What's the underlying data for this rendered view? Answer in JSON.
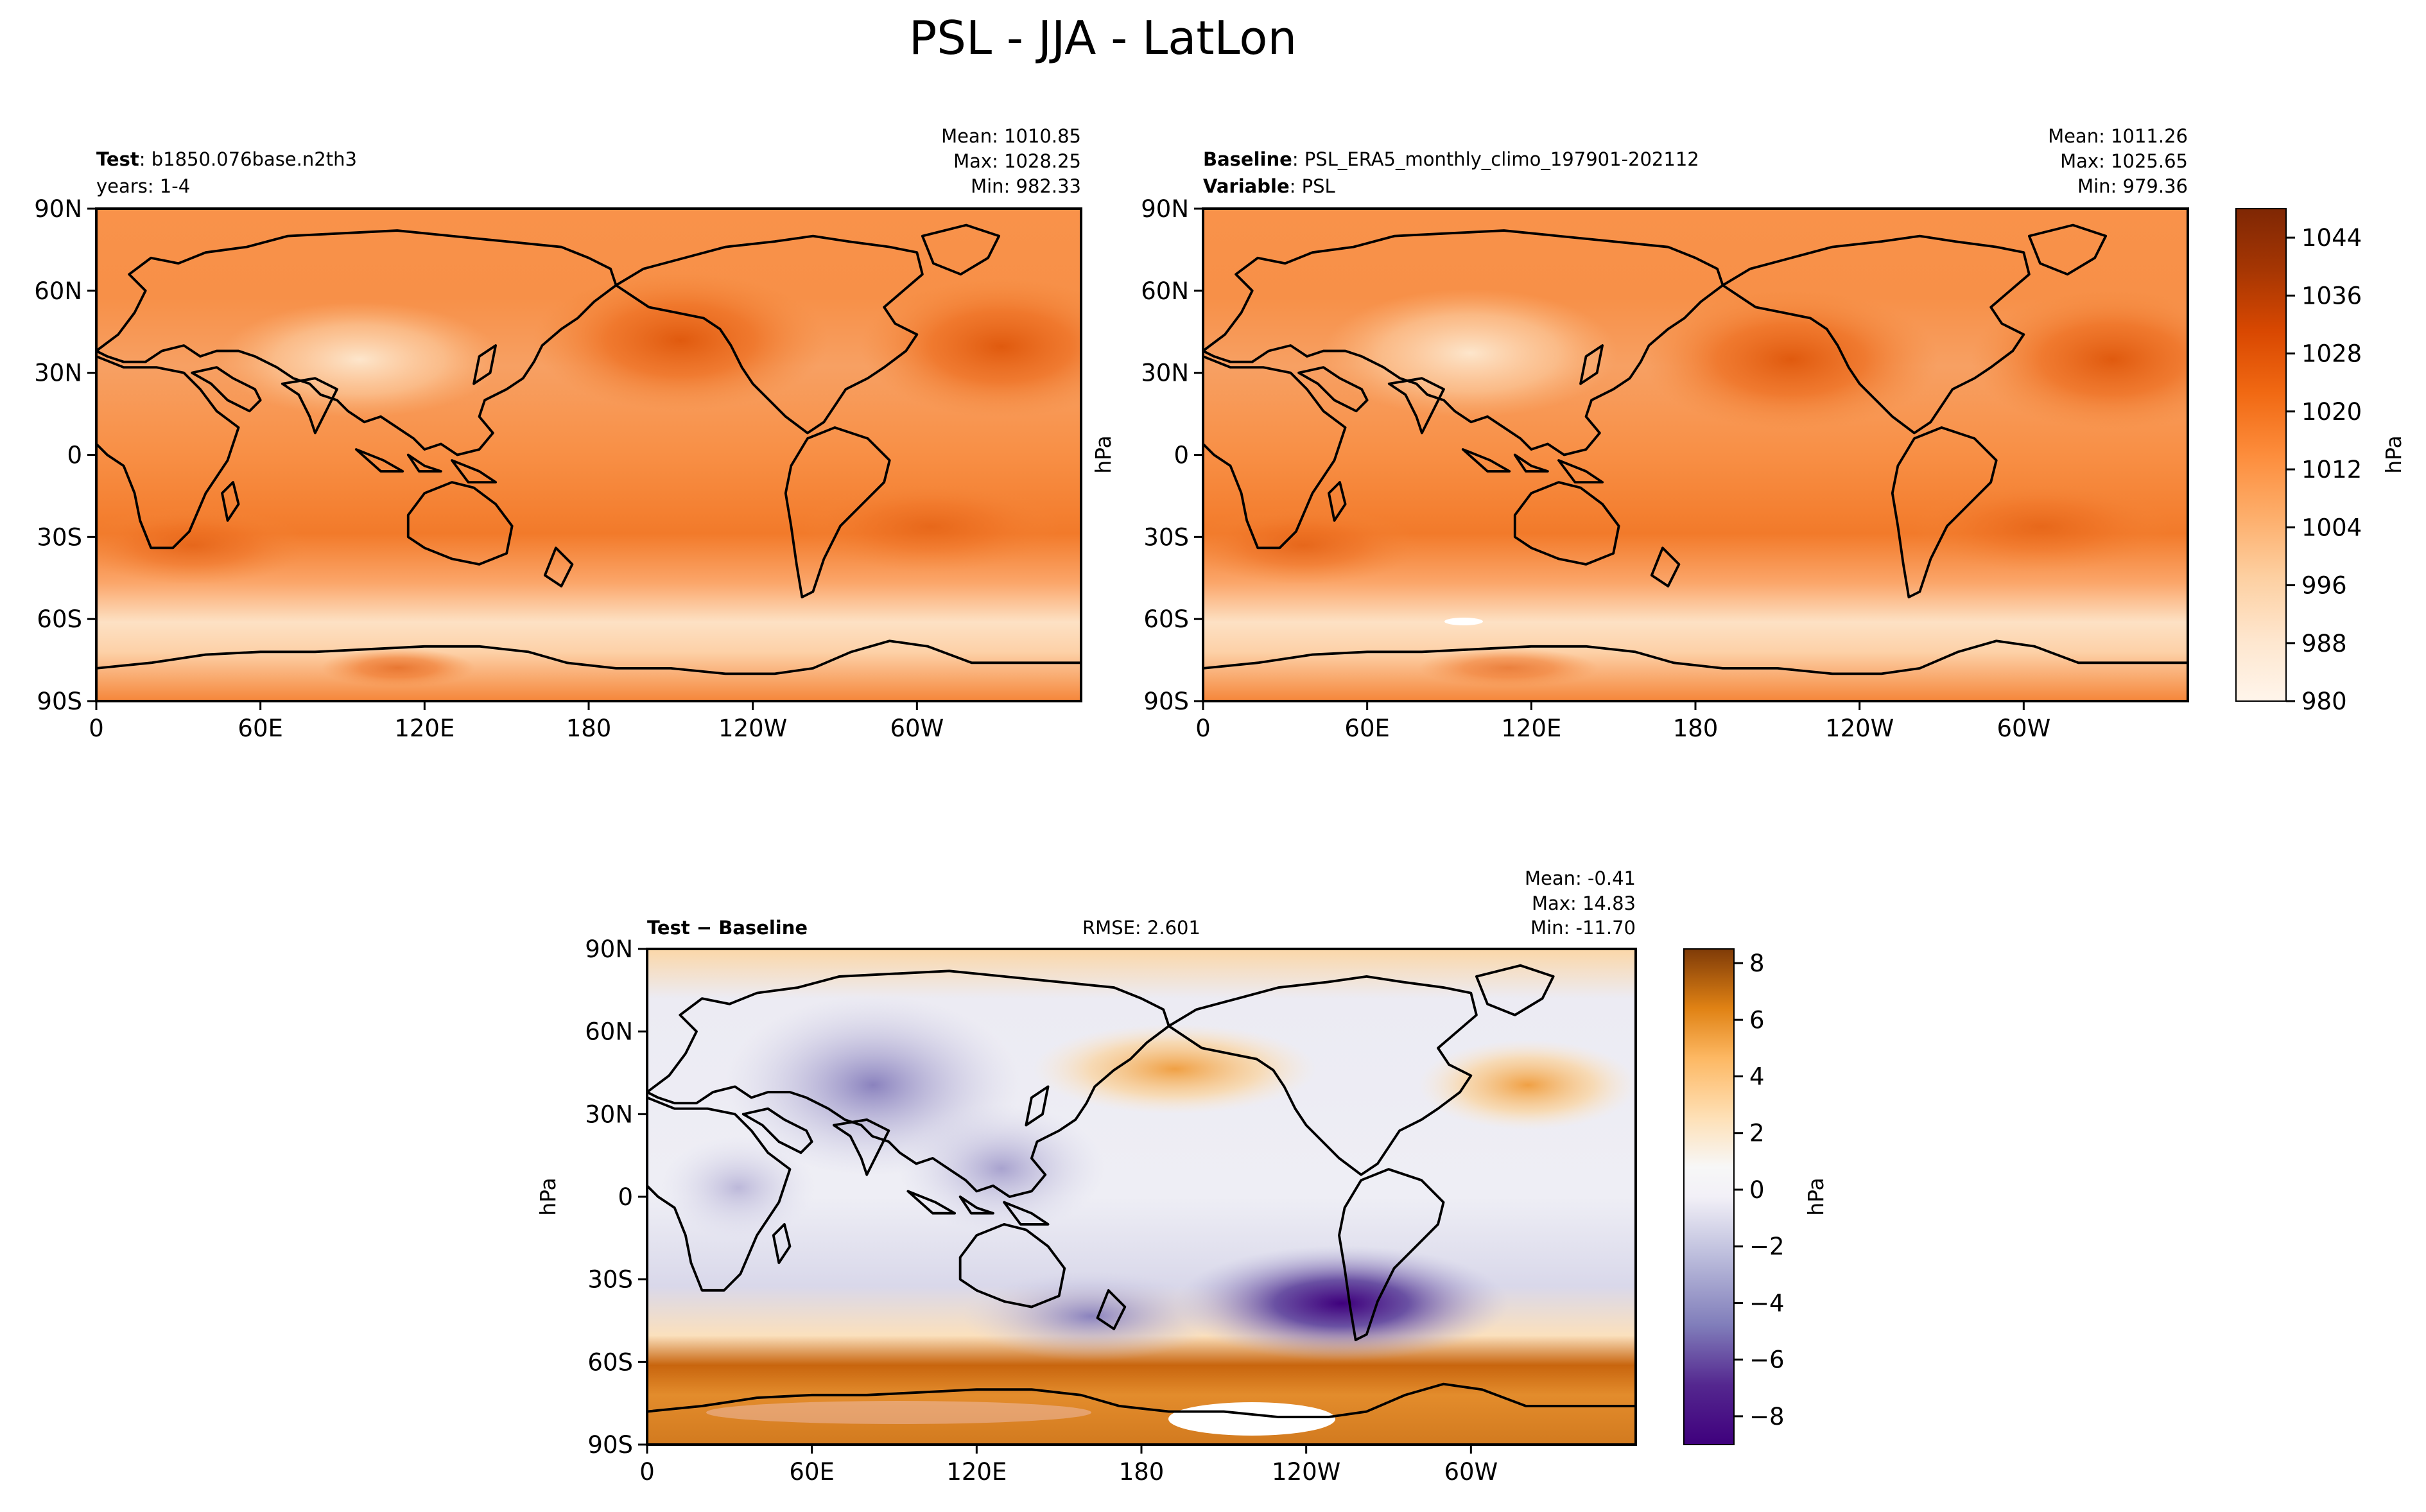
{
  "title": "PSL - JJA - LatLon",
  "lon_ticks": [
    "0",
    "60E",
    "120E",
    "180",
    "120W",
    "60W"
  ],
  "lat_ticks": [
    "90N",
    "60N",
    "30N",
    "0",
    "30S",
    "60S",
    "90S"
  ],
  "panels": [
    {
      "id": "test",
      "left_lines": [
        {
          "bold": "Test",
          "sep": ": ",
          "text": "b1850.076base.n2th3"
        },
        {
          "bold": "",
          "sep": "",
          "text": "years: 1-4"
        }
      ],
      "center_text": "",
      "stats": [
        "Mean: 1010.85",
        "Max: 1028.25",
        "Min: 982.33"
      ],
      "ylabel": ""
    },
    {
      "id": "baseline",
      "left_lines": [
        {
          "bold": "Baseline",
          "sep": ": ",
          "text": "PSL_ERA5_monthly_climo_197901-202112"
        },
        {
          "bold": "Variable",
          "sep": ": ",
          "text": "PSL"
        }
      ],
      "center_text": "",
      "stats": [
        "Mean: 1011.26",
        "Max: 1025.65",
        "Min: 979.36"
      ],
      "ylabel": "hPa"
    },
    {
      "id": "diff",
      "left_lines": [
        {
          "bold": "Test − Baseline",
          "sep": "",
          "text": ""
        }
      ],
      "center_text": "RMSE: 2.601",
      "stats": [
        "Mean: -0.41",
        "Max: 14.83",
        "Min: -11.70"
      ],
      "ylabel": "hPa"
    }
  ],
  "colorbars": [
    {
      "id": "abs",
      "label": "hPa",
      "ticks": [
        "1044",
        "1036",
        "1028",
        "1020",
        "1012",
        "1004",
        "996",
        "988",
        "980"
      ],
      "range": [
        980,
        1048
      ],
      "colors": [
        "#fff5eb",
        "#fee6ce",
        "#fdd0a2",
        "#fdae6b",
        "#fd8d3c",
        "#f16913",
        "#d94801",
        "#a63603",
        "#7f2704"
      ]
    },
    {
      "id": "diff",
      "label": "hPa",
      "ticks": [
        "8",
        "6",
        "4",
        "2",
        "0",
        "−2",
        "−4",
        "−6",
        "−8"
      ],
      "range": [
        -9,
        8.5
      ],
      "colors": [
        "#3f007d",
        "#54278f",
        "#6a51a3",
        "#807dba",
        "#9e9ac8",
        "#dadaeb",
        "#f7f7f7",
        "#fee0b6",
        "#fdb863",
        "#e08214",
        "#b35806",
        "#7f3b08"
      ]
    }
  ],
  "chart_data": [
    {
      "type": "heatmap",
      "title": "Test: b1850.076base.n2th3",
      "subtitle": "years: 1-4",
      "variable": "PSL",
      "units": "hPa",
      "x_ticks": [
        "0",
        "60E",
        "120E",
        "180",
        "120W",
        "60W"
      ],
      "y_ticks": [
        "90N",
        "60N",
        "30N",
        "0",
        "30S",
        "60S",
        "90S"
      ],
      "xlim": [
        0,
        360
      ],
      "ylim": [
        -90,
        90
      ],
      "mean": 1010.85,
      "max": 1028.25,
      "min": 982.33,
      "color_range": [
        980,
        1048
      ]
    },
    {
      "type": "heatmap",
      "title": "Baseline: PSL_ERA5_monthly_climo_197901-202112",
      "subtitle": "Variable: PSL",
      "variable": "PSL",
      "units": "hPa",
      "x_ticks": [
        "0",
        "60E",
        "120E",
        "180",
        "120W",
        "60W"
      ],
      "y_ticks": [
        "90N",
        "60N",
        "30N",
        "0",
        "30S",
        "60S",
        "90S"
      ],
      "xlim": [
        0,
        360
      ],
      "ylim": [
        -90,
        90
      ],
      "mean": 1011.26,
      "max": 1025.65,
      "min": 979.36,
      "color_range": [
        980,
        1048
      ]
    },
    {
      "type": "heatmap",
      "title": "Test − Baseline",
      "subtitle": "RMSE: 2.601",
      "variable": "PSL",
      "units": "hPa",
      "x_ticks": [
        "0",
        "60E",
        "120E",
        "180",
        "120W",
        "60W"
      ],
      "y_ticks": [
        "90N",
        "60N",
        "30N",
        "0",
        "30S",
        "60S",
        "90S"
      ],
      "xlim": [
        0,
        360
      ],
      "ylim": [
        -90,
        90
      ],
      "mean": -0.41,
      "max": 14.83,
      "min": -11.7,
      "rmse": 2.601,
      "color_range": [
        -9,
        8.5
      ]
    }
  ]
}
